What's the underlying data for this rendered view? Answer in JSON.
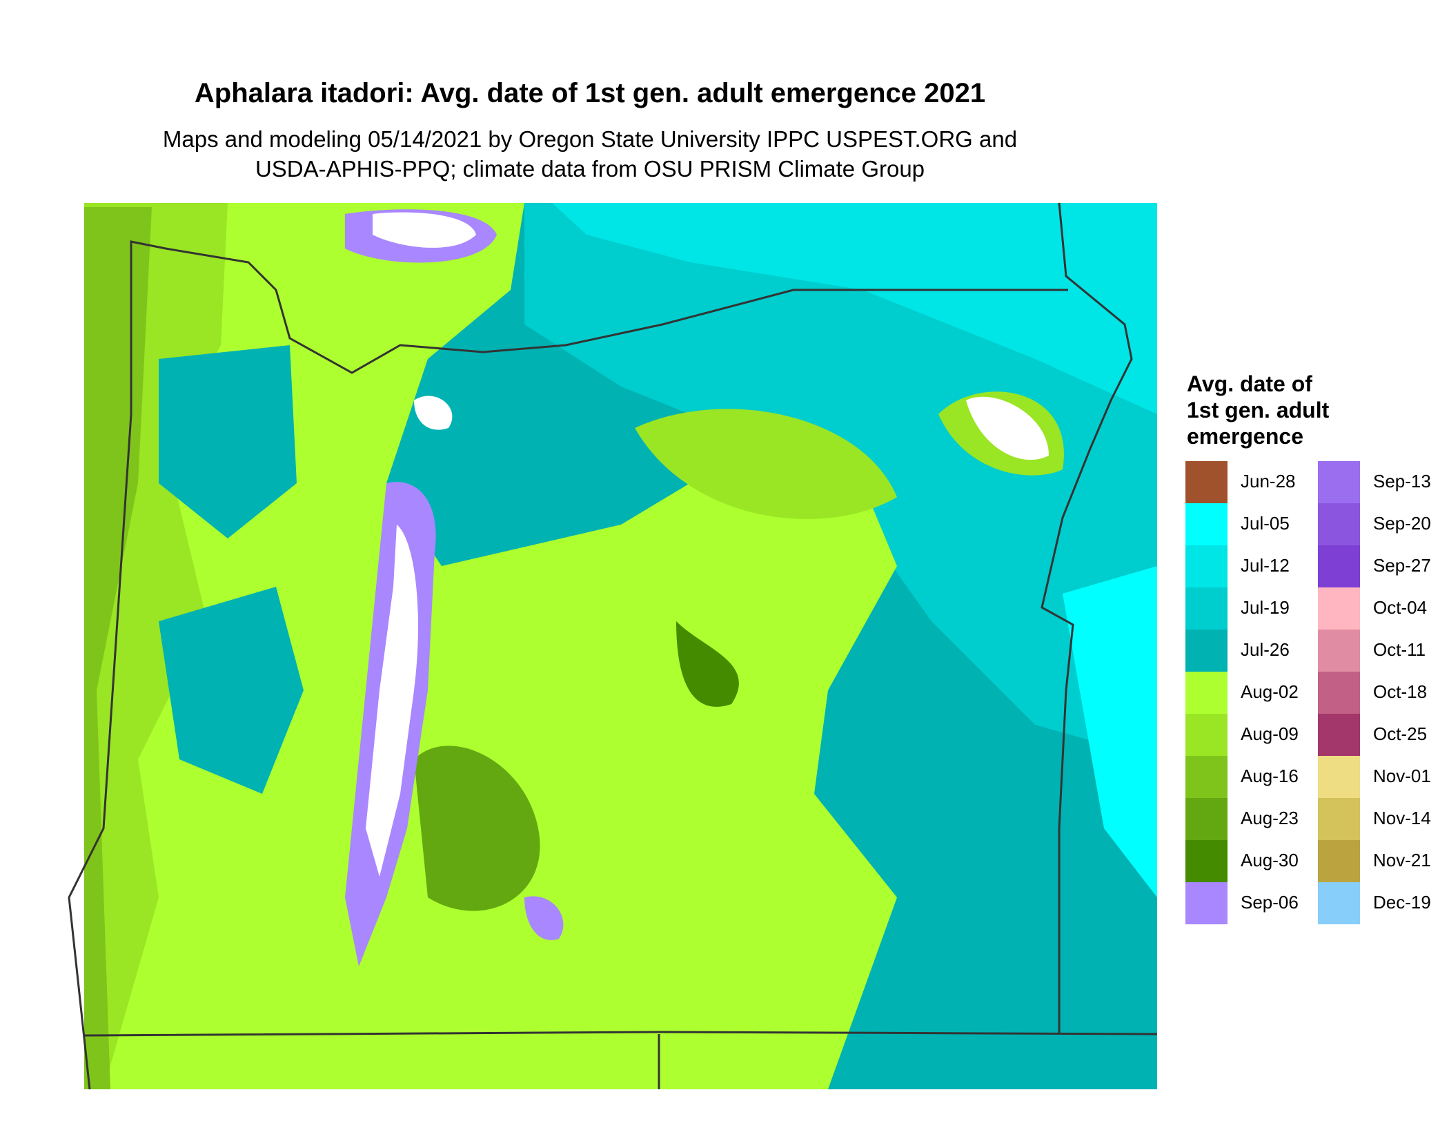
{
  "header": {
    "title": "Aphalara itadori: Avg. date of 1st gen. adult emergence 2021",
    "subtitle": [
      "Maps and modeling 05/14/2021 by Oregon State University IPPC USPEST.ORG and",
      "USDA-APHIS-PPQ; climate data from OSU PRISM Climate Group"
    ]
  },
  "legend": {
    "title": [
      "Avg. date of",
      "1st gen. adult",
      "emergence"
    ],
    "items": [
      {
        "label": "Jun-28",
        "color": "#a0522d"
      },
      {
        "label": "Jul-05",
        "color": "#00ffff"
      },
      {
        "label": "Jul-12",
        "color": "#00e5e5"
      },
      {
        "label": "Jul-19",
        "color": "#00cdcd"
      },
      {
        "label": "Jul-26",
        "color": "#00b2b2"
      },
      {
        "label": "Aug-02",
        "color": "#adff2f"
      },
      {
        "label": "Aug-09",
        "color": "#9ae524"
      },
      {
        "label": "Aug-16",
        "color": "#7fc41a"
      },
      {
        "label": "Aug-23",
        "color": "#63a811"
      },
      {
        "label": "Aug-30",
        "color": "#458b00"
      },
      {
        "label": "Sep-06",
        "color": "#a987ff"
      },
      {
        "label": "Sep-13",
        "color": "#9b6ef0"
      },
      {
        "label": "Sep-20",
        "color": "#8c55e0"
      },
      {
        "label": "Sep-27",
        "color": "#7d3fd4"
      },
      {
        "label": "Oct-04",
        "color": "#ffb6c1"
      },
      {
        "label": "Oct-11",
        "color": "#e08ca3"
      },
      {
        "label": "Oct-18",
        "color": "#c26085"
      },
      {
        "label": "Oct-25",
        "color": "#a3366a"
      },
      {
        "label": "Nov-01",
        "color": "#eedd82"
      },
      {
        "label": "Nov-14",
        "color": "#d4c25a"
      },
      {
        "label": "Nov-21",
        "color": "#bba43f"
      },
      {
        "label": "Dec-19",
        "color": "#87cefa"
      }
    ]
  }
}
